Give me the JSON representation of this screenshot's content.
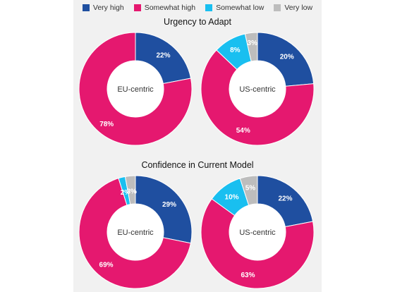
{
  "legend": [
    {
      "label": "Very high",
      "color": "#1f4fa0"
    },
    {
      "label": "Somewhat high",
      "color": "#e5186f"
    },
    {
      "label": "Somewhat low",
      "color": "#19bff0"
    },
    {
      "label": "Very low",
      "color": "#bdbdbd"
    }
  ],
  "chart_data": [
    {
      "type": "pie",
      "section_title": "Urgency to Adapt",
      "title": "EU-centric",
      "slices": [
        {
          "name": "Very high",
          "value": 22,
          "label": "22%"
        },
        {
          "name": "Somewhat high",
          "value": 78,
          "label": "78%"
        }
      ]
    },
    {
      "type": "pie",
      "section_title": "Urgency to Adapt",
      "title": "US-centric",
      "slices": [
        {
          "name": "Very high",
          "value": 20,
          "label": "20%"
        },
        {
          "name": "Somewhat high",
          "value": 54,
          "label": "54%"
        },
        {
          "name": "Somewhat low",
          "value": 8,
          "label": "8%"
        },
        {
          "name": "Very low",
          "value": 3,
          "label": "3%"
        }
      ]
    },
    {
      "type": "pie",
      "section_title": "Confidence in Current Model",
      "title": "EU-centric",
      "slices": [
        {
          "name": "Very high",
          "value": 29,
          "label": "29%"
        },
        {
          "name": "Somewhat high",
          "value": 69,
          "label": "69%"
        },
        {
          "name": "Somewhat low",
          "value": 2,
          "label": "2%"
        },
        {
          "name": "Very low",
          "value": 3,
          "label": "3%"
        }
      ]
    },
    {
      "type": "pie",
      "section_title": "Confidence in Current Model",
      "title": "US-centric",
      "slices": [
        {
          "name": "Very high",
          "value": 22,
          "label": "22%"
        },
        {
          "name": "Somewhat high",
          "value": 63,
          "label": "63%"
        },
        {
          "name": "Somewhat low",
          "value": 10,
          "label": "10%"
        },
        {
          "name": "Very low",
          "value": 5,
          "label": "5%"
        }
      ]
    }
  ],
  "section_titles": [
    "Urgency to Adapt",
    "Confidence in Current Model"
  ]
}
